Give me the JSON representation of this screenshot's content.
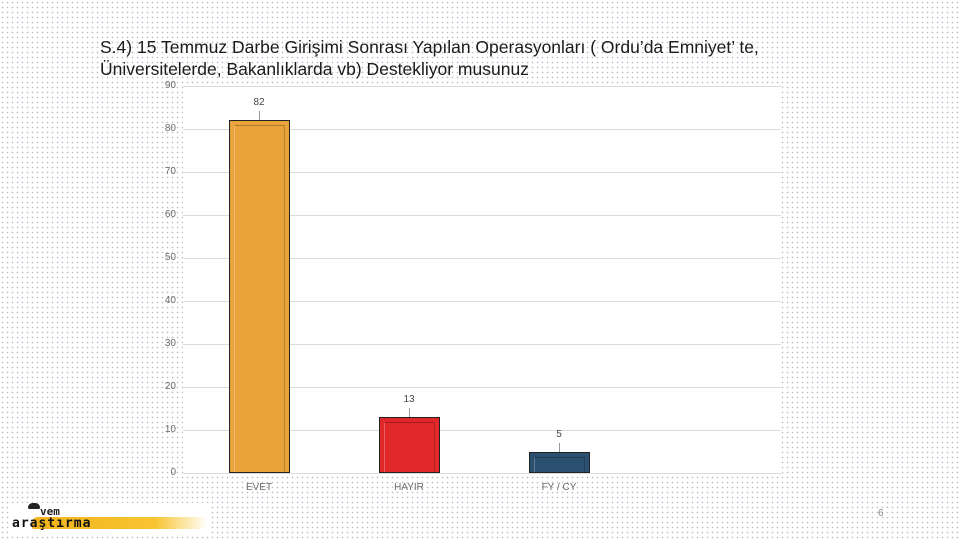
{
  "slide": {
    "title": "S.4) 15 Temmuz Darbe Girişimi Sonrası Yapılan Operasyonları ( Ordu’da Emniyet’ te, Üniversitelerde, Bakanlıklarda vb) Destekliyor musunuz",
    "page_number": "6",
    "logo": {
      "line1": "vem",
      "line2": "araştırma"
    }
  },
  "chart_data": {
    "type": "bar",
    "title": "S.4) 15 Temmuz Darbe Girişimi Sonrası Yapılan Operasyonları ( Ordu’da Emniyet’ te, Üniversitelerde, Bakanlıklarda vb) Destekliyor musunuz",
    "categories": [
      "EVET",
      "HAYIR",
      "FY / CY"
    ],
    "values": [
      82,
      13,
      5
    ],
    "data_labels": [
      "82",
      "13",
      "5"
    ],
    "colors": [
      "#e8a43a",
      "#e0282a",
      "#2b4f6e"
    ],
    "xlabel": "",
    "ylabel": "",
    "ylim": [
      0,
      90
    ],
    "yticks": [
      "0",
      "10",
      "20",
      "30",
      "40",
      "50",
      "60",
      "70",
      "80",
      "90"
    ],
    "grid": true,
    "legend": "none"
  }
}
